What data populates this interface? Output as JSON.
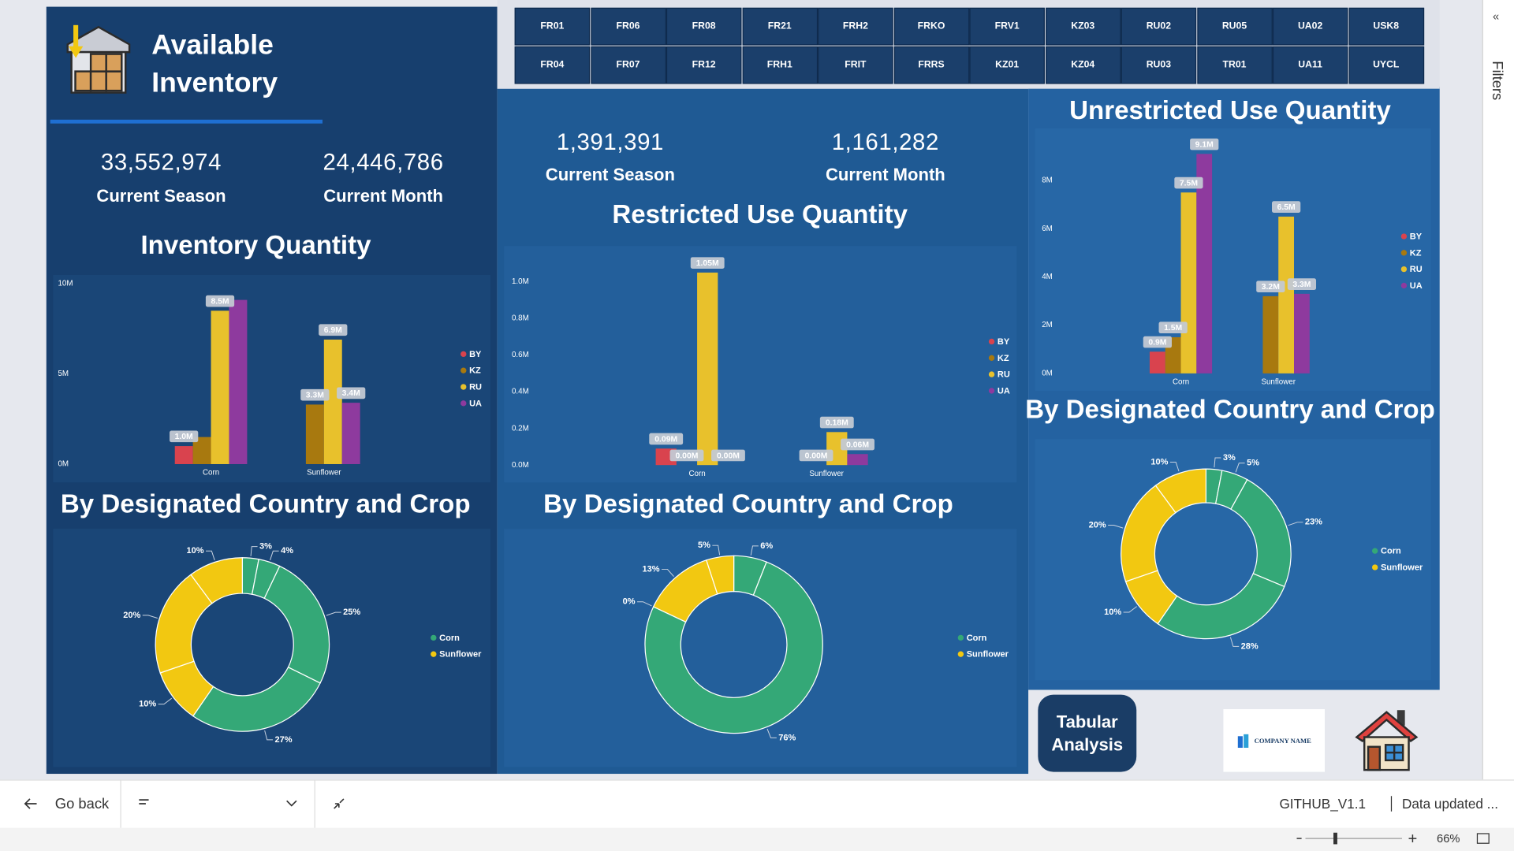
{
  "header": {
    "title": "Available Inventory"
  },
  "plant_filters": [
    [
      "FR01",
      "FR06",
      "FR08",
      "FR21",
      "FRH2",
      "FRKO",
      "FRV1",
      "KZ03",
      "RU02",
      "RU05",
      "UA02",
      "USK8"
    ],
    [
      "FR04",
      "FR07",
      "FR12",
      "FRH1",
      "FRIT",
      "FRRS",
      "KZ01",
      "KZ04",
      "RU03",
      "TR01",
      "UA11",
      "UYCL"
    ]
  ],
  "panels": [
    {
      "kpis": [
        {
          "value": "33,552,974",
          "label": "Current Season"
        },
        {
          "value": "24,446,786",
          "label": "Current Month"
        }
      ],
      "bar_chart": {
        "type": "bar",
        "title": "Inventory Quantity",
        "categories": [
          "Corn",
          "Sunflower"
        ],
        "series": [
          {
            "name": "BY",
            "color": "#d9434e",
            "values": [
              1000000,
              0
            ],
            "value_labels": [
              "1.0M",
              null
            ]
          },
          {
            "name": "KZ",
            "color": "#a8790f",
            "values": [
              1500000,
              3300000
            ],
            "value_labels": [
              null,
              "3.3M"
            ]
          },
          {
            "name": "RU",
            "color": "#e8c12c",
            "values": [
              8500000,
              6900000
            ],
            "value_labels": [
              "8.5M",
              "6.9M"
            ]
          },
          {
            "name": "UA",
            "color": "#8e3a9e",
            "values": [
              9100000,
              3400000
            ],
            "value_labels": [
              null,
              "3.4M"
            ]
          }
        ],
        "ylim": [
          0,
          10000000
        ],
        "yticks": [
          {
            "value": 0,
            "label": "0M"
          },
          {
            "value": 5000000,
            "label": "5M"
          },
          {
            "value": 10000000,
            "label": "10M"
          }
        ],
        "legend": "right"
      },
      "donut_chart": {
        "type": "donut",
        "title": "By Designated Country and Crop",
        "series": [
          {
            "name": "Corn",
            "color": "#34a877",
            "values": [
              3,
              4,
              25,
              27
            ],
            "value_labels": [
              "3%",
              "4%",
              "25%",
              "27%"
            ]
          },
          {
            "name": "Sunflower",
            "color": "#f2c811",
            "values": [
              10,
              20,
              10
            ],
            "value_labels": [
              "10%",
              "20%",
              "10%"
            ]
          }
        ],
        "legend": "right"
      }
    },
    {
      "kpis": [
        {
          "value": "1,391,391",
          "label": "Current Season"
        },
        {
          "value": "1,161,282",
          "label": "Current Month"
        }
      ],
      "bar_chart": {
        "type": "bar",
        "title": "Restricted Use Quantity",
        "categories": [
          "Corn",
          "Sunflower"
        ],
        "series": [
          {
            "name": "BY",
            "color": "#d9434e",
            "values": [
              90000,
              0
            ],
            "value_labels": [
              "0.09M",
              null
            ]
          },
          {
            "name": "KZ",
            "color": "#a8790f",
            "values": [
              0,
              0
            ],
            "value_labels": [
              "0.00M",
              "0.00M"
            ]
          },
          {
            "name": "RU",
            "color": "#e8c12c",
            "values": [
              1050000,
              180000
            ],
            "value_labels": [
              "1.05M",
              "0.18M"
            ]
          },
          {
            "name": "UA",
            "color": "#8e3a9e",
            "values": [
              0,
              60000
            ],
            "value_labels": [
              "0.00M",
              "0.06M"
            ]
          }
        ],
        "ylim": [
          0,
          1100000
        ],
        "yticks": [
          {
            "value": 0,
            "label": "0.0M"
          },
          {
            "value": 200000,
            "label": "0.2M"
          },
          {
            "value": 400000,
            "label": "0.4M"
          },
          {
            "value": 600000,
            "label": "0.6M"
          },
          {
            "value": 800000,
            "label": "0.8M"
          },
          {
            "value": 1000000,
            "label": "1.0M"
          }
        ],
        "legend": "right"
      },
      "donut_chart": {
        "type": "donut",
        "title": "By Designated Country and Crop",
        "series": [
          {
            "name": "Corn",
            "color": "#34a877",
            "values": [
              6,
              76
            ],
            "value_labels": [
              "6%",
              "76%"
            ]
          },
          {
            "name": "Sunflower",
            "color": "#f2c811",
            "values": [
              0,
              13,
              5
            ],
            "value_labels": [
              "0%",
              "13%",
              "5%"
            ]
          }
        ],
        "legend": "right"
      }
    },
    {
      "bar_chart": {
        "type": "bar",
        "title": "Unrestricted Use Quantity",
        "categories": [
          "Corn",
          "Sunflower"
        ],
        "series": [
          {
            "name": "BY",
            "color": "#d9434e",
            "values": [
              900000,
              0
            ],
            "value_labels": [
              "0.9M",
              null
            ]
          },
          {
            "name": "KZ",
            "color": "#a8790f",
            "values": [
              1500000,
              3200000
            ],
            "value_labels": [
              "1.5M",
              "3.2M"
            ]
          },
          {
            "name": "RU",
            "color": "#e8c12c",
            "values": [
              7500000,
              6500000
            ],
            "value_labels": [
              "7.5M",
              "6.5M"
            ]
          },
          {
            "name": "UA",
            "color": "#8e3a9e",
            "values": [
              9100000,
              3300000
            ],
            "value_labels": [
              "9.1M",
              "3.3M"
            ]
          }
        ],
        "ylim": [
          0,
          10000000
        ],
        "yticks": [
          {
            "value": 0,
            "label": "0M"
          },
          {
            "value": 2000000,
            "label": "2M"
          },
          {
            "value": 4000000,
            "label": "4M"
          },
          {
            "value": 6000000,
            "label": "6M"
          },
          {
            "value": 8000000,
            "label": "8M"
          }
        ],
        "legend": "right"
      },
      "donut_chart": {
        "type": "donut",
        "title": "By Designated Country and Crop",
        "series": [
          {
            "name": "Corn",
            "color": "#34a877",
            "values": [
              3,
              5,
              23,
              28
            ],
            "value_labels": [
              "3%",
              "5%",
              "23%",
              "28%"
            ]
          },
          {
            "name": "Sunflower",
            "color": "#f2c811",
            "values": [
              10,
              20,
              10
            ],
            "value_labels": [
              "10%",
              "20%",
              "10%"
            ]
          }
        ],
        "legend": "right"
      }
    }
  ],
  "buttons": {
    "tabular": "Tabular Analysis",
    "company": "COMPANY NAME"
  },
  "status_bar": {
    "back": "Go back",
    "version": "GITHUB_V1.1",
    "updated": "Data updated ...",
    "zoom": "66%"
  },
  "side_panel": {
    "filters": "Filters"
  }
}
